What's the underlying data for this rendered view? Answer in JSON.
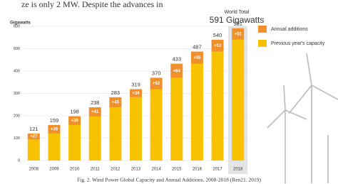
{
  "page": {
    "text_above": "ze is only 2 MW.  Despite the advances in",
    "caption": "Fig. 2. Wind Power Global Capacity and Annual Additions, 2008-2018 (Ren21, 2019)"
  },
  "chart_data": {
    "type": "stacked_bar",
    "y_label": "Gigawatts",
    "annotation_top": "World Total",
    "annotation_value": "591 Gigawatts",
    "categories": [
      "2008",
      "2009",
      "2010",
      "2011",
      "2012",
      "2013",
      "2014",
      "2015",
      "2016",
      "2017",
      "2018"
    ],
    "series": [
      {
        "name": "Previous year's capacity",
        "color": "#f7c300",
        "values": [
          94,
          121,
          159,
          197,
          238,
          283,
          318,
          369,
          432,
          487,
          540
        ]
      },
      {
        "name": "Annual additions",
        "color": "#f0902a",
        "values": [
          27,
          38,
          39,
          41,
          45,
          36,
          52,
          64,
          55,
          53,
          51
        ],
        "value_labels": [
          "+27",
          "+38",
          "+39",
          "+41",
          "+45",
          "+36",
          "+52",
          "+64",
          "+55",
          "+53",
          "+51"
        ]
      }
    ],
    "totals": [
      121,
      159,
      198,
      238,
      283,
      319,
      370,
      433,
      487,
      540,
      591
    ],
    "ylim": [
      0,
      600
    ],
    "yticks": [
      0,
      100,
      200,
      300,
      400,
      500,
      600
    ],
    "grid": true
  }
}
